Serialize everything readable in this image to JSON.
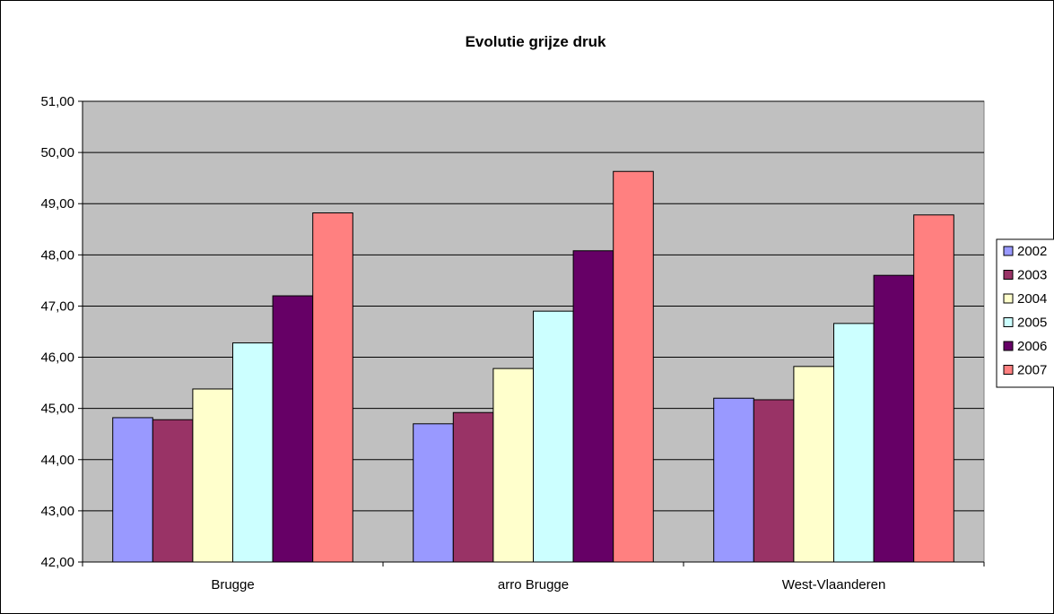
{
  "chart_data": {
    "type": "bar",
    "title": "Evolutie grijze druk",
    "xlabel": "",
    "ylabel": "",
    "categories": [
      "Brugge",
      "arro Brugge",
      "West-Vlaanderen"
    ],
    "ylim": [
      42,
      51
    ],
    "y_ticks": [
      "42,00",
      "43,00",
      "44,00",
      "45,00",
      "46,00",
      "47,00",
      "48,00",
      "49,00",
      "50,00",
      "51,00"
    ],
    "grid": true,
    "legend_position": "right",
    "series": [
      {
        "name": "2002",
        "color": "#9999ff",
        "values": [
          44.82,
          44.7,
          45.2
        ]
      },
      {
        "name": "2003",
        "color": "#993366",
        "values": [
          44.78,
          44.92,
          45.17
        ]
      },
      {
        "name": "2004",
        "color": "#ffffcc",
        "values": [
          45.38,
          45.78,
          45.82
        ]
      },
      {
        "name": "2005",
        "color": "#ccffff",
        "values": [
          46.28,
          46.9,
          46.66
        ]
      },
      {
        "name": "2006",
        "color": "#660066",
        "values": [
          47.2,
          48.08,
          47.6
        ]
      },
      {
        "name": "2007",
        "color": "#ff8080",
        "values": [
          48.82,
          49.63,
          48.78
        ]
      }
    ],
    "plot_background": "#c0c0c0",
    "border_color": "#000000"
  }
}
